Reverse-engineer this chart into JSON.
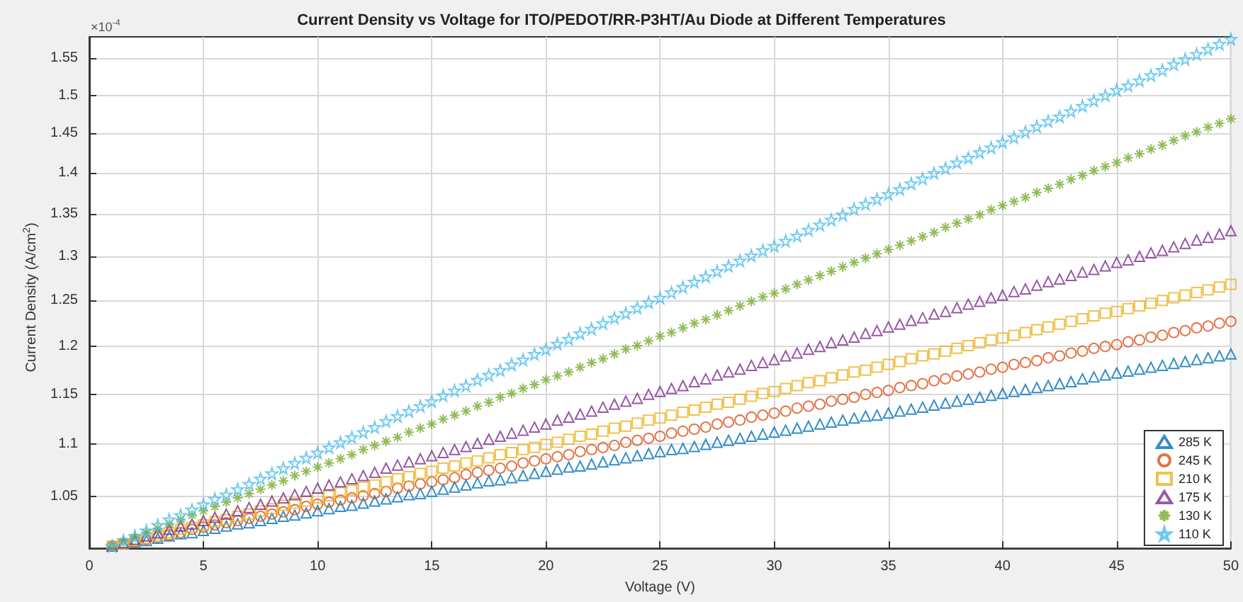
{
  "chart_data": {
    "type": "scatter",
    "title": "Current Density vs Voltage for ITO/PEDOT/RR-P3HT/Au Diode at Different Temperatures",
    "xlabel": "Voltage (V)",
    "ylabel": "Current Density (A/cm$^{2}$)",
    "annotations": [
      "×10$^{-4}$"
    ],
    "x": [
      1,
      1.5,
      2,
      2.5,
      3,
      3.5,
      4,
      4.5,
      5,
      5.5,
      6,
      6.5,
      7,
      7.5,
      8,
      8.5,
      9,
      9.5,
      10,
      10.5,
      11,
      11.5,
      12,
      12.5,
      13,
      13.5,
      14,
      14.5,
      15,
      15.5,
      16,
      16.5,
      17,
      17.5,
      18,
      18.5,
      19,
      19.5,
      20,
      20.5,
      21,
      21.5,
      22,
      22.5,
      23,
      23.5,
      24,
      24.5,
      25,
      25.5,
      26,
      26.5,
      27,
      27.5,
      28,
      28.5,
      29,
      29.5,
      30,
      30.5,
      31,
      31.5,
      32,
      32.5,
      33,
      33.5,
      34,
      34.5,
      35,
      35.5,
      36,
      36.5,
      37,
      37.5,
      38,
      38.5,
      39,
      39.5,
      40,
      40.5,
      41,
      41.5,
      42,
      42.5,
      43,
      43.5,
      44,
      44.5,
      45,
      45.5,
      46,
      46.5,
      47,
      47.5,
      48,
      48.5,
      49,
      49.5,
      50
    ],
    "series": [
      {
        "name": "285 K",
        "color": "#0072bd",
        "marker": "triangle",
        "values": [
          1.005,
          1.007,
          1.009,
          1.01,
          1.012,
          1.014,
          1.016,
          1.017,
          1.019,
          1.021,
          1.023,
          1.025,
          1.026,
          1.028,
          1.03,
          1.032,
          1.033,
          1.035,
          1.037,
          1.039,
          1.041,
          1.042,
          1.044,
          1.046,
          1.048,
          1.05,
          1.052,
          1.053,
          1.055,
          1.057,
          1.059,
          1.061,
          1.063,
          1.065,
          1.066,
          1.068,
          1.07,
          1.072,
          1.074,
          1.076,
          1.078,
          1.079,
          1.081,
          1.083,
          1.085,
          1.087,
          1.089,
          1.091,
          1.093,
          1.095,
          1.096,
          1.098,
          1.1,
          1.102,
          1.104,
          1.106,
          1.108,
          1.11,
          1.112,
          1.114,
          1.116,
          1.118,
          1.12,
          1.122,
          1.124,
          1.126,
          1.128,
          1.129,
          1.131,
          1.133,
          1.135,
          1.137,
          1.139,
          1.141,
          1.143,
          1.145,
          1.147,
          1.149,
          1.151,
          1.153,
          1.155,
          1.157,
          1.159,
          1.161,
          1.163,
          1.166,
          1.168,
          1.17,
          1.172,
          1.174,
          1.176,
          1.178,
          1.18,
          1.182,
          1.184,
          1.186,
          1.188,
          1.19,
          1.192
        ]
      },
      {
        "name": "245 K",
        "color": "#d95319",
        "marker": "circle",
        "values": [
          1.005,
          1.007,
          1.009,
          1.011,
          1.013,
          1.015,
          1.017,
          1.02,
          1.022,
          1.024,
          1.026,
          1.028,
          1.03,
          1.032,
          1.034,
          1.036,
          1.038,
          1.041,
          1.043,
          1.045,
          1.047,
          1.049,
          1.051,
          1.053,
          1.055,
          1.058,
          1.06,
          1.062,
          1.064,
          1.066,
          1.068,
          1.071,
          1.073,
          1.075,
          1.077,
          1.079,
          1.082,
          1.084,
          1.086,
          1.088,
          1.09,
          1.093,
          1.095,
          1.097,
          1.099,
          1.102,
          1.104,
          1.106,
          1.108,
          1.111,
          1.113,
          1.115,
          1.117,
          1.12,
          1.122,
          1.124,
          1.127,
          1.129,
          1.131,
          1.133,
          1.136,
          1.138,
          1.14,
          1.143,
          1.145,
          1.147,
          1.15,
          1.152,
          1.154,
          1.157,
          1.159,
          1.161,
          1.164,
          1.166,
          1.169,
          1.171,
          1.173,
          1.176,
          1.178,
          1.181,
          1.183,
          1.185,
          1.188,
          1.19,
          1.193,
          1.195,
          1.198,
          1.2,
          1.202,
          1.205,
          1.207,
          1.21,
          1.212,
          1.215,
          1.217,
          1.22,
          1.222,
          1.225,
          1.227
        ]
      },
      {
        "name": "210 K",
        "color": "#edb120",
        "marker": "square",
        "values": [
          1.005,
          1.007,
          1.01,
          1.012,
          1.015,
          1.017,
          1.02,
          1.022,
          1.024,
          1.027,
          1.029,
          1.032,
          1.034,
          1.037,
          1.039,
          1.042,
          1.044,
          1.046,
          1.049,
          1.051,
          1.054,
          1.056,
          1.059,
          1.061,
          1.064,
          1.067,
          1.069,
          1.072,
          1.074,
          1.077,
          1.079,
          1.082,
          1.084,
          1.087,
          1.09,
          1.092,
          1.095,
          1.097,
          1.1,
          1.102,
          1.105,
          1.108,
          1.11,
          1.113,
          1.116,
          1.118,
          1.121,
          1.124,
          1.126,
          1.129,
          1.132,
          1.134,
          1.137,
          1.14,
          1.142,
          1.145,
          1.148,
          1.151,
          1.153,
          1.156,
          1.159,
          1.162,
          1.164,
          1.167,
          1.17,
          1.173,
          1.175,
          1.178,
          1.181,
          1.184,
          1.187,
          1.19,
          1.192,
          1.195,
          1.198,
          1.201,
          1.204,
          1.207,
          1.209,
          1.212,
          1.215,
          1.218,
          1.221,
          1.224,
          1.227,
          1.23,
          1.233,
          1.236,
          1.238,
          1.241,
          1.244,
          1.247,
          1.25,
          1.253,
          1.256,
          1.259,
          1.262,
          1.265,
          1.268
        ]
      },
      {
        "name": "175 K",
        "color": "#7e2f8e",
        "marker": "triangle",
        "values": [
          1.005,
          1.008,
          1.011,
          1.014,
          1.017,
          1.02,
          1.023,
          1.025,
          1.028,
          1.031,
          1.034,
          1.037,
          1.04,
          1.043,
          1.046,
          1.049,
          1.052,
          1.055,
          1.058,
          1.061,
          1.064,
          1.067,
          1.07,
          1.073,
          1.077,
          1.08,
          1.083,
          1.086,
          1.089,
          1.092,
          1.095,
          1.098,
          1.101,
          1.105,
          1.108,
          1.111,
          1.114,
          1.117,
          1.12,
          1.124,
          1.127,
          1.13,
          1.133,
          1.137,
          1.14,
          1.143,
          1.146,
          1.15,
          1.153,
          1.156,
          1.159,
          1.163,
          1.166,
          1.17,
          1.173,
          1.176,
          1.18,
          1.183,
          1.186,
          1.19,
          1.193,
          1.197,
          1.2,
          1.204,
          1.207,
          1.21,
          1.214,
          1.217,
          1.221,
          1.224,
          1.228,
          1.231,
          1.235,
          1.238,
          1.242,
          1.246,
          1.249,
          1.253,
          1.256,
          1.26,
          1.263,
          1.267,
          1.271,
          1.274,
          1.278,
          1.282,
          1.285,
          1.289,
          1.293,
          1.296,
          1.3,
          1.304,
          1.307,
          1.311,
          1.315,
          1.319,
          1.322,
          1.326,
          1.33
        ]
      },
      {
        "name": "130 K",
        "color": "#77ac30",
        "marker": "cross",
        "values": [
          1.005,
          1.009,
          1.013,
          1.017,
          1.021,
          1.025,
          1.029,
          1.033,
          1.037,
          1.041,
          1.045,
          1.049,
          1.053,
          1.057,
          1.061,
          1.065,
          1.07,
          1.074,
          1.078,
          1.082,
          1.086,
          1.09,
          1.095,
          1.099,
          1.103,
          1.107,
          1.112,
          1.116,
          1.12,
          1.125,
          1.129,
          1.133,
          1.138,
          1.142,
          1.147,
          1.151,
          1.156,
          1.16,
          1.165,
          1.169,
          1.173,
          1.178,
          1.183,
          1.187,
          1.192,
          1.197,
          1.201,
          1.206,
          1.211,
          1.215,
          1.22,
          1.225,
          1.229,
          1.234,
          1.239,
          1.244,
          1.249,
          1.254,
          1.258,
          1.263,
          1.268,
          1.273,
          1.278,
          1.283,
          1.288,
          1.293,
          1.298,
          1.303,
          1.308,
          1.313,
          1.318,
          1.323,
          1.328,
          1.334,
          1.339,
          1.344,
          1.349,
          1.355,
          1.36,
          1.365,
          1.37,
          1.376,
          1.381,
          1.386,
          1.392,
          1.397,
          1.403,
          1.408,
          1.413,
          1.419,
          1.424,
          1.43,
          1.435,
          1.441,
          1.447,
          1.452,
          1.458,
          1.463,
          1.469
        ]
      },
      {
        "name": "110 K",
        "color": "#4dbeee",
        "marker": "star",
        "values": [
          1.005,
          1.01,
          1.014,
          1.019,
          1.024,
          1.029,
          1.033,
          1.038,
          1.043,
          1.048,
          1.052,
          1.057,
          1.062,
          1.067,
          1.072,
          1.077,
          1.082,
          1.087,
          1.092,
          1.097,
          1.102,
          1.107,
          1.112,
          1.117,
          1.123,
          1.128,
          1.133,
          1.138,
          1.143,
          1.149,
          1.154,
          1.159,
          1.165,
          1.17,
          1.175,
          1.181,
          1.186,
          1.192,
          1.197,
          1.203,
          1.208,
          1.214,
          1.219,
          1.225,
          1.231,
          1.236,
          1.242,
          1.248,
          1.253,
          1.259,
          1.265,
          1.271,
          1.277,
          1.283,
          1.289,
          1.295,
          1.301,
          1.307,
          1.312,
          1.318,
          1.324,
          1.331,
          1.337,
          1.343,
          1.349,
          1.356,
          1.362,
          1.368,
          1.374,
          1.38,
          1.387,
          1.393,
          1.4,
          1.406,
          1.413,
          1.419,
          1.426,
          1.432,
          1.439,
          1.445,
          1.452,
          1.459,
          1.466,
          1.472,
          1.479,
          1.486,
          1.493,
          1.5,
          1.507,
          1.513,
          1.52,
          1.527,
          1.534,
          1.542,
          1.549,
          1.556,
          1.563,
          1.57,
          1.577
        ]
      }
    ],
    "xlim": [
      0,
      50
    ],
    "xticks": [
      0,
      5,
      10,
      15,
      20,
      25,
      30,
      35,
      40,
      45,
      50
    ],
    "ylim": [
      1.003,
      1.58
    ],
    "yticks": [
      1.05,
      1.1,
      1.15,
      1.2,
      1.25,
      1.3,
      1.35,
      1.4,
      1.45,
      1.5,
      1.55
    ],
    "log": "y",
    "grid": true,
    "legend": "bottom right"
  }
}
